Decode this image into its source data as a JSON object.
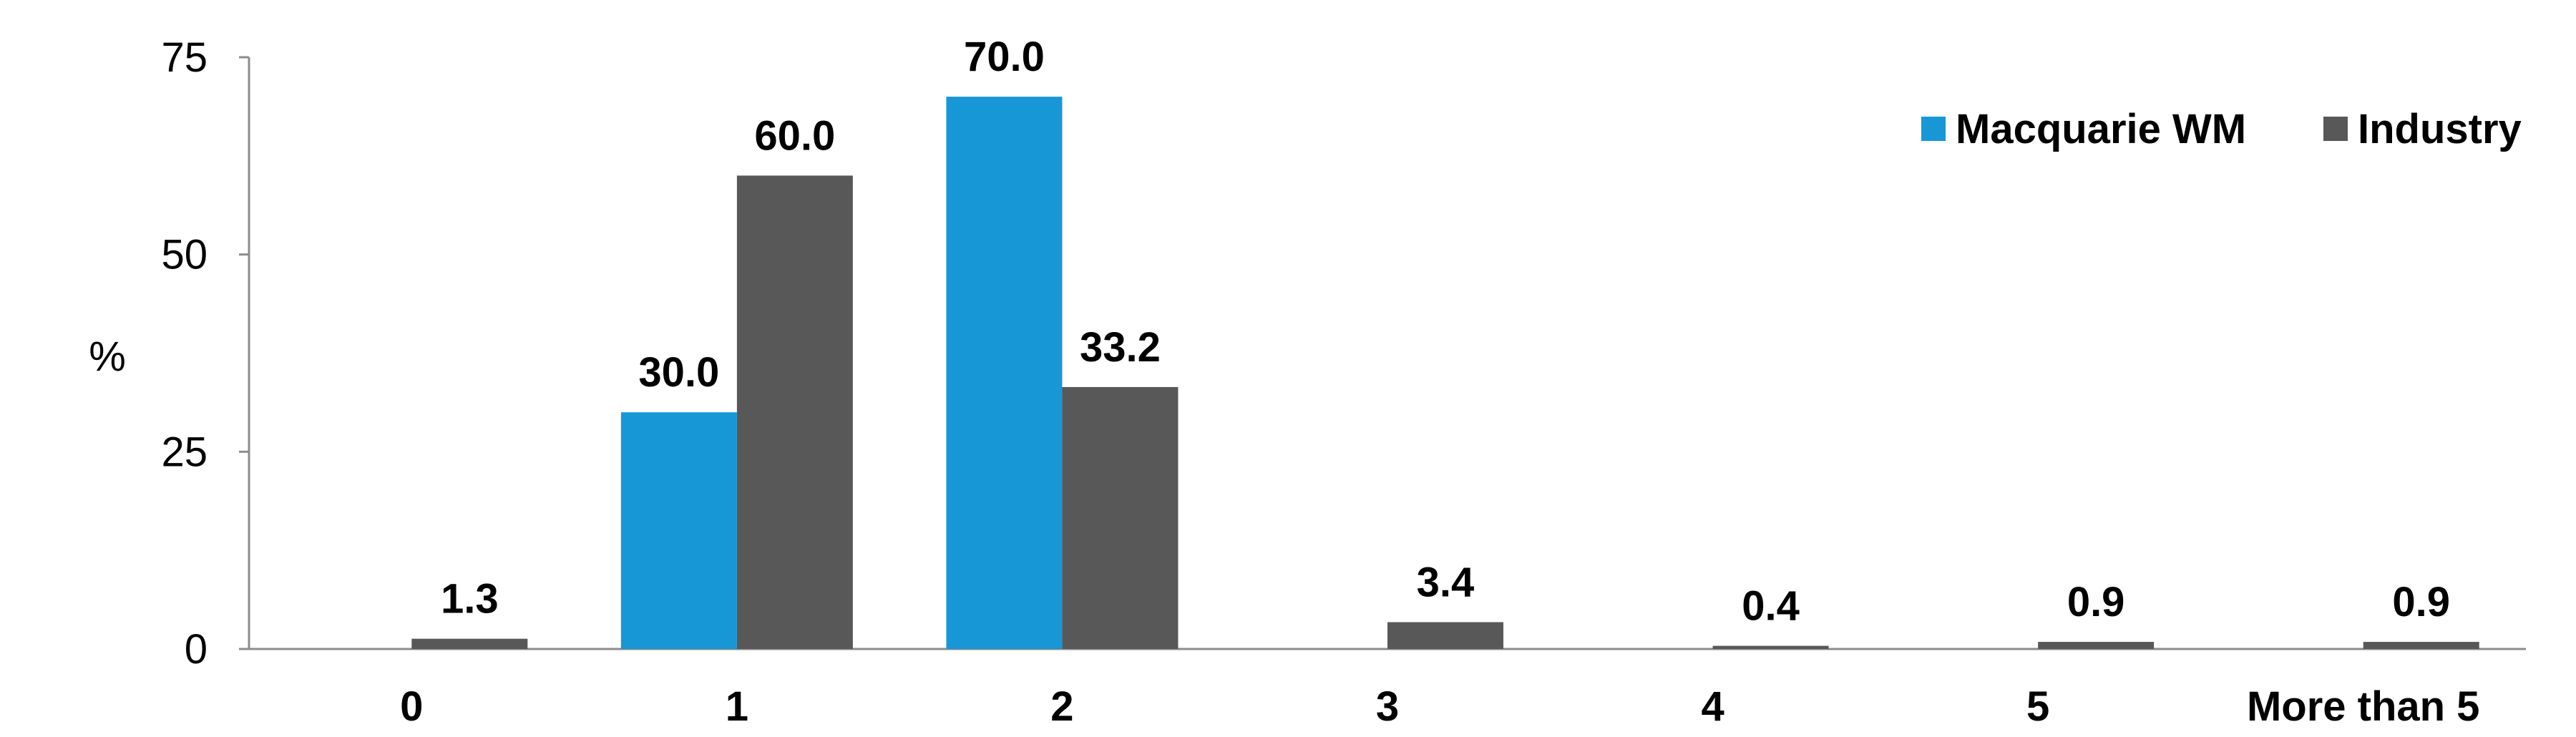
{
  "chart_data": {
    "type": "bar",
    "title": "",
    "xlabel": "",
    "ylabel": "%",
    "ylim": [
      0,
      75
    ],
    "yticks": [
      0,
      25,
      50,
      75
    ],
    "grid": false,
    "legend_position": "top-right",
    "categories": [
      "0",
      "1",
      "2",
      "3",
      "4",
      "5",
      "More than 5"
    ],
    "series": [
      {
        "name": "Macquarie WM",
        "color": "#1797D6",
        "values": [
          0,
          30.0,
          70.0,
          0,
          0,
          0,
          0
        ],
        "labels": [
          "",
          "30.0",
          "70.0",
          "",
          "",
          "",
          ""
        ]
      },
      {
        "name": "Industry",
        "color": "#585858",
        "values": [
          1.3,
          60.0,
          33.2,
          3.4,
          0.4,
          0.9,
          0.9
        ],
        "labels": [
          "1.3",
          "60.0",
          "33.2",
          "3.4",
          "0.4",
          "0.9",
          "0.9"
        ]
      }
    ]
  }
}
